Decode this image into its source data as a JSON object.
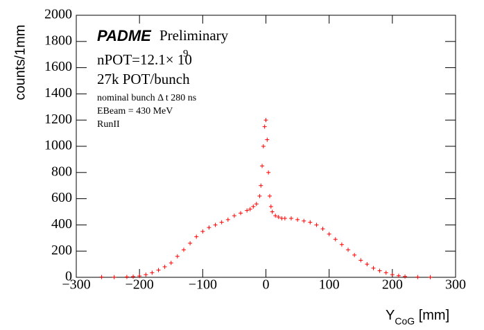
{
  "chart_data": {
    "type": "scatter",
    "annotations": {
      "experiment": "PADME",
      "status": "Preliminary",
      "npot": "nPOT=12.1× 10",
      "npot_exponent": "9",
      "bunch": "27k POT/bunch",
      "spacing": "nominal bunch Δ t 280 ns",
      "beam": "EBeam = 430 MeV",
      "run": "RunII"
    },
    "y_label": "counts/1mm",
    "x_label": {
      "main": "Y",
      "subscript": "CoG",
      "unit": " [mm]"
    },
    "color": "#ff0000",
    "x": [
      -260,
      -240,
      -220,
      -210,
      -200,
      -190,
      -180,
      -170,
      -160,
      -150,
      -140,
      -130,
      -120,
      -110,
      -100,
      -90,
      -80,
      -70,
      -60,
      -50,
      -40,
      -30,
      -25,
      -20,
      -15,
      -10,
      -8,
      -6,
      -4,
      -2,
      0,
      2,
      4,
      6,
      8,
      10,
      15,
      20,
      25,
      30,
      40,
      50,
      60,
      70,
      80,
      90,
      100,
      110,
      120,
      130,
      140,
      150,
      160,
      170,
      180,
      190,
      200,
      210,
      220,
      240,
      260
    ],
    "values": [
      2,
      1,
      3,
      5,
      10,
      20,
      35,
      55,
      80,
      110,
      160,
      210,
      260,
      310,
      350,
      380,
      400,
      420,
      440,
      470,
      490,
      510,
      520,
      540,
      560,
      620,
      700,
      850,
      1000,
      1150,
      1200,
      1050,
      800,
      620,
      540,
      500,
      470,
      460,
      450,
      450,
      450,
      440,
      430,
      420,
      400,
      370,
      330,
      290,
      250,
      210,
      170,
      130,
      100,
      70,
      50,
      35,
      20,
      12,
      6,
      2,
      1
    ],
    "xlim": [
      -300,
      300
    ],
    "xticks": [
      {
        "value": -300,
        "label": "−300"
      },
      {
        "value": -200,
        "label": "−200"
      },
      {
        "value": -100,
        "label": "−100"
      },
      0,
      100,
      200,
      300
    ],
    "ylim": [
      0,
      2000
    ],
    "yticks": [
      0,
      200,
      400,
      600,
      800,
      1000,
      1200,
      1400,
      1600,
      1800,
      2000
    ]
  }
}
